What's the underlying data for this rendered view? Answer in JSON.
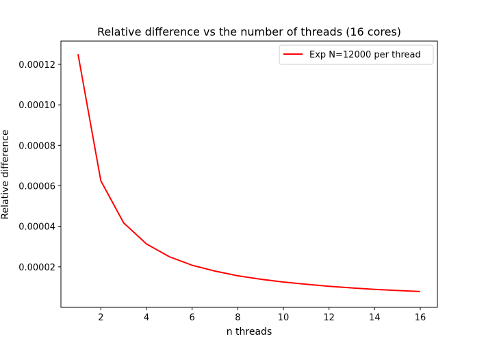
{
  "chart_data": {
    "type": "line",
    "title": "Relative difference vs the number of threads (16 cores)",
    "xlabel": "n threads",
    "ylabel": "Relative difference",
    "xlim": [
      0.25,
      16.75
    ],
    "ylim": [
      0.0,
      0.0001315
    ],
    "xticks": [
      2,
      4,
      6,
      8,
      10,
      12,
      14,
      16
    ],
    "xtick_labels": [
      "2",
      "4",
      "6",
      "8",
      "10",
      "12",
      "14",
      "16"
    ],
    "yticks": [
      2e-05,
      4e-05,
      6e-05,
      8e-05,
      0.0001,
      0.00012
    ],
    "ytick_labels": [
      "0.00002",
      "0.00004",
      "0.00006",
      "0.00008",
      "0.00010",
      "0.00012"
    ],
    "grid": false,
    "legend_position": "top-right",
    "series": [
      {
        "name": "Exp N=12000 per thread",
        "color": "#ff0000",
        "x": [
          1,
          2,
          3,
          4,
          5,
          6,
          7,
          8,
          9,
          10,
          11,
          12,
          13,
          14,
          15,
          16
        ],
        "y": [
          0.000125,
          6.25e-05,
          4.17e-05,
          3.13e-05,
          2.5e-05,
          2.08e-05,
          1.79e-05,
          1.56e-05,
          1.39e-05,
          1.25e-05,
          1.14e-05,
          1.04e-05,
          9.6e-06,
          8.9e-06,
          8.3e-06,
          7.8e-06
        ]
      }
    ]
  }
}
